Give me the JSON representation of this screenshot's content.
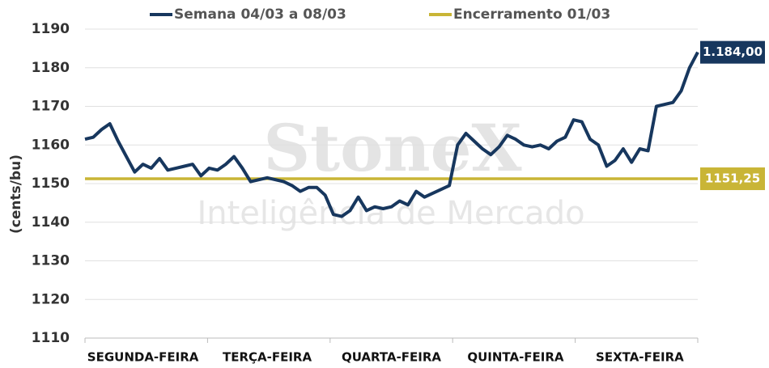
{
  "chart_data": {
    "type": "line",
    "ylabel": "(cents/bu)",
    "watermark": [
      "StoneX",
      "Inteligência de Mercado"
    ],
    "categories": [
      null,
      null,
      null,
      null,
      null,
      null,
      null,
      "SEGUNDA-FEIRA",
      null,
      null,
      null,
      null,
      null,
      null,
      null,
      null,
      null,
      null,
      null,
      null,
      null,
      null,
      "TERÇA-FEIRA",
      null,
      null,
      null,
      null,
      null,
      null,
      null,
      null,
      null,
      null,
      null,
      null,
      null,
      null,
      "QUARTA-FEIRA",
      null,
      null,
      null,
      null,
      null,
      null,
      null,
      null,
      null,
      null,
      null,
      null,
      null,
      null,
      "QUINTA-FEIRA",
      null,
      null,
      null,
      null,
      null,
      null,
      null,
      null,
      null,
      null,
      null,
      null,
      null,
      null,
      "SEXTA-FEIRA",
      null,
      null,
      null,
      null,
      null,
      null,
      null
    ],
    "series": [
      {
        "name": "Semana 04/03 a 08/03",
        "color": "#17375e",
        "end_label": "1.184,00",
        "values": [
          1161.5,
          1162,
          1164,
          1165.5,
          1161,
          1157,
          1153,
          1155,
          1154,
          1156.5,
          1153.5,
          1154,
          1154.5,
          1155,
          1152,
          1154,
          1153.5,
          1155,
          1157,
          1154,
          1150.5,
          1151,
          1151.5,
          1151,
          1150.5,
          1149.5,
          1148,
          1149,
          1149,
          1147,
          1142,
          1141.5,
          1143,
          1146.5,
          1143,
          1144,
          1143.5,
          1144,
          1145.5,
          1144.5,
          1148,
          1146.5,
          1147.5,
          1148.5,
          1149.5,
          1160,
          1163,
          1161,
          1159,
          1157.5,
          1159.5,
          1162.5,
          1161.5,
          1160,
          1159.5,
          1160,
          1159,
          1161,
          1162,
          1166.5,
          1166,
          1161.5,
          1160,
          1154.5,
          1156,
          1159,
          1155.5,
          1159,
          1158.5,
          1170,
          1170.5,
          1171,
          1174,
          1180,
          1184
        ]
      },
      {
        "name": "Encerramento 01/03",
        "color": "#c9b536",
        "end_label": "1151,25",
        "values": [
          1151.25,
          1151.25,
          1151.25,
          1151.25,
          1151.25,
          1151.25,
          1151.25,
          1151.25,
          1151.25,
          1151.25,
          1151.25,
          1151.25,
          1151.25,
          1151.25,
          1151.25,
          1151.25,
          1151.25,
          1151.25,
          1151.25,
          1151.25,
          1151.25,
          1151.25,
          1151.25,
          1151.25,
          1151.25,
          1151.25,
          1151.25,
          1151.25,
          1151.25,
          1151.25,
          1151.25,
          1151.25,
          1151.25,
          1151.25,
          1151.25,
          1151.25,
          1151.25,
          1151.25,
          1151.25,
          1151.25,
          1151.25,
          1151.25,
          1151.25,
          1151.25,
          1151.25,
          1151.25,
          1151.25,
          1151.25,
          1151.25,
          1151.25,
          1151.25,
          1151.25,
          1151.25,
          1151.25,
          1151.25,
          1151.25,
          1151.25,
          1151.25,
          1151.25,
          1151.25,
          1151.25,
          1151.25,
          1151.25,
          1151.25,
          1151.25,
          1151.25,
          1151.25,
          1151.25,
          1151.25,
          1151.25,
          1151.25,
          1151.25,
          1151.25,
          1151.25,
          1151.25
        ]
      }
    ],
    "ylim": [
      1110,
      1190
    ],
    "yticks": [
      1110,
      1120,
      1130,
      1140,
      1150,
      1160,
      1170,
      1180,
      1190
    ],
    "grid": true
  }
}
